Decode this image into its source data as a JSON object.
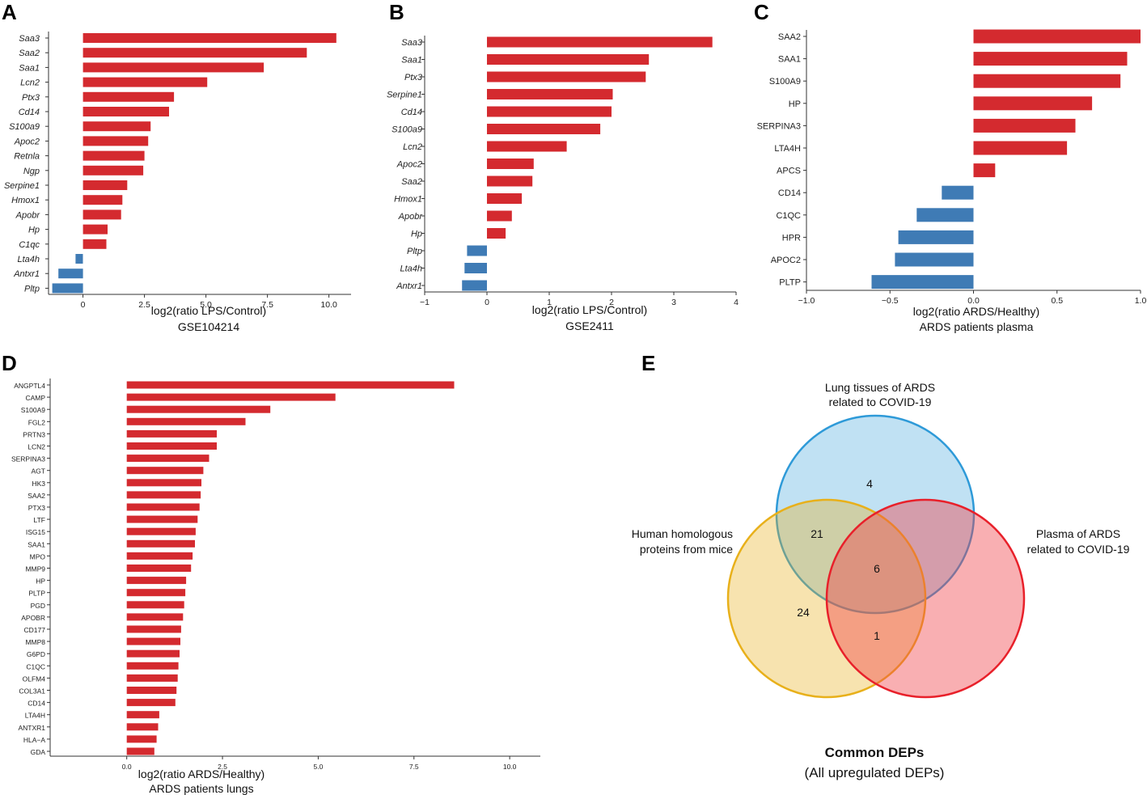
{
  "colors": {
    "positive": "#d42a2f",
    "negative": "#3f7bb5",
    "set_lung": "#2e9ad8",
    "set_plasma": "#e8202a",
    "set_mice": "#e8b01a"
  },
  "panels": {
    "A": "A",
    "B": "B",
    "C": "C",
    "D": "D",
    "E": "E"
  },
  "chart_data": [
    {
      "id": "A",
      "type": "bar",
      "orientation": "horizontal",
      "italic_labels": true,
      "categories": [
        "Saa3",
        "Saa2",
        "Saa1",
        "Lcn2",
        "Ptx3",
        "Cd14",
        "S100a9",
        "Apoc2",
        "Retnla",
        "Ngp",
        "Serpine1",
        "Hmox1",
        "Apobr",
        "Hp",
        "C1qc",
        "Lta4h",
        "Antxr1",
        "Pltp"
      ],
      "values": [
        10.3,
        9.1,
        7.35,
        5.05,
        3.7,
        3.5,
        2.75,
        2.65,
        2.5,
        2.45,
        1.8,
        1.6,
        1.55,
        1.0,
        0.95,
        -0.3,
        -1.0,
        -1.25
      ],
      "xlim": [
        -1.4,
        10.9
      ],
      "xticks": [
        0,
        2.5,
        5.0,
        7.5,
        10.0
      ],
      "xtick_labels": [
        "0",
        "2.5",
        "5.0",
        "7.5",
        "10.0"
      ],
      "xlabel": "log2(ratio LPS/Control)",
      "subtitle": "GSE104214"
    },
    {
      "id": "B",
      "type": "bar",
      "orientation": "horizontal",
      "italic_labels": true,
      "categories": [
        "Saa3",
        "Saa1",
        "Ptx3",
        "Serpine1",
        "Cd14",
        "S100a9",
        "Lcn2",
        "Apoc2",
        "Saa2",
        "Hmox1",
        "Apobr",
        "Hp",
        "Pltp",
        "Lta4h",
        "Antxr1"
      ],
      "values": [
        3.62,
        2.6,
        2.55,
        2.02,
        2.0,
        1.82,
        1.28,
        0.75,
        0.73,
        0.56,
        0.4,
        0.3,
        -0.32,
        -0.36,
        -0.4
      ],
      "xlim": [
        -1.0,
        4.0
      ],
      "xticks": [
        -1,
        0,
        1,
        2,
        3,
        4
      ],
      "xtick_labels": [
        "−1",
        "0",
        "1",
        "2",
        "3",
        "4"
      ],
      "xlabel": "log2(ratio LPS/Control)",
      "subtitle": "GSE2411"
    },
    {
      "id": "C",
      "type": "bar",
      "orientation": "horizontal",
      "italic_labels": false,
      "categories": [
        "SAA2",
        "SAA1",
        "S100A9",
        "HP",
        "SERPINA3",
        "LTA4H",
        "APCS",
        "CD14",
        "C1QC",
        "HPR",
        "APOC2",
        "PLTP"
      ],
      "values": [
        1.0,
        0.92,
        0.88,
        0.71,
        0.61,
        0.56,
        0.13,
        -0.19,
        -0.34,
        -0.45,
        -0.47,
        -0.61
      ],
      "xlim": [
        -1.0,
        1.0
      ],
      "xticks": [
        -1.0,
        -0.5,
        0.0,
        0.5,
        1.0
      ],
      "xtick_labels": [
        "−1.0",
        "−0.5",
        "0.0",
        "0.5",
        "1.0"
      ],
      "xlabel": "log2(ratio ARDS/Healthy)",
      "subtitle": "ARDS patients plasma"
    },
    {
      "id": "D",
      "type": "bar",
      "orientation": "horizontal",
      "italic_labels": false,
      "categories": [
        "ANGPTL4",
        "CAMP",
        "S100A9",
        "FGL2",
        "PRTN3",
        "LCN2",
        "SERPINA3",
        "AGT",
        "HK3",
        "SAA2",
        "PTX3",
        "LTF",
        "ISG15",
        "SAA1",
        "MPO",
        "MMP9",
        "HP",
        "PLTP",
        "PGD",
        "APOBR",
        "CD177",
        "MMP8",
        "G6PD",
        "C1QC",
        "OLFM4",
        "COL3A1",
        "CD14",
        "LTA4H",
        "ANTXR1",
        "HLA−A",
        "GDA"
      ],
      "values": [
        8.55,
        5.45,
        3.75,
        3.1,
        2.35,
        2.35,
        2.15,
        2.0,
        1.95,
        1.93,
        1.9,
        1.85,
        1.8,
        1.78,
        1.72,
        1.68,
        1.55,
        1.53,
        1.5,
        1.47,
        1.42,
        1.4,
        1.38,
        1.35,
        1.33,
        1.3,
        1.27,
        0.85,
        0.82,
        0.78,
        0.72
      ],
      "xlim": [
        -2.0,
        10.8
      ],
      "xticks": [
        0.0,
        2.5,
        5.0,
        7.5,
        10.0
      ],
      "xtick_labels": [
        "0.0",
        "2.5",
        "5.0",
        "7.5",
        "10.0"
      ],
      "xlabel": "log2(ratio ARDS/Healthy)",
      "subtitle": "ARDS patients lungs"
    }
  ],
  "venn": {
    "sets": [
      {
        "id": "lung",
        "label_line1": "Lung tissues of ARDS",
        "label_line2": "related to COVID-19"
      },
      {
        "id": "mice",
        "label_line1": "Human homologous",
        "label_line2": "proteins from mice"
      },
      {
        "id": "plasma",
        "label_line1": "Plasma of ARDS",
        "label_line2": "related to COVID-19"
      }
    ],
    "counts": {
      "lung_only": "4",
      "lung_mice": "21",
      "all_three": "6",
      "mice_only": "24",
      "mice_plasma": "1"
    },
    "title": "Common  DEPs",
    "subtitle": "(All upregulated DEPs)"
  }
}
